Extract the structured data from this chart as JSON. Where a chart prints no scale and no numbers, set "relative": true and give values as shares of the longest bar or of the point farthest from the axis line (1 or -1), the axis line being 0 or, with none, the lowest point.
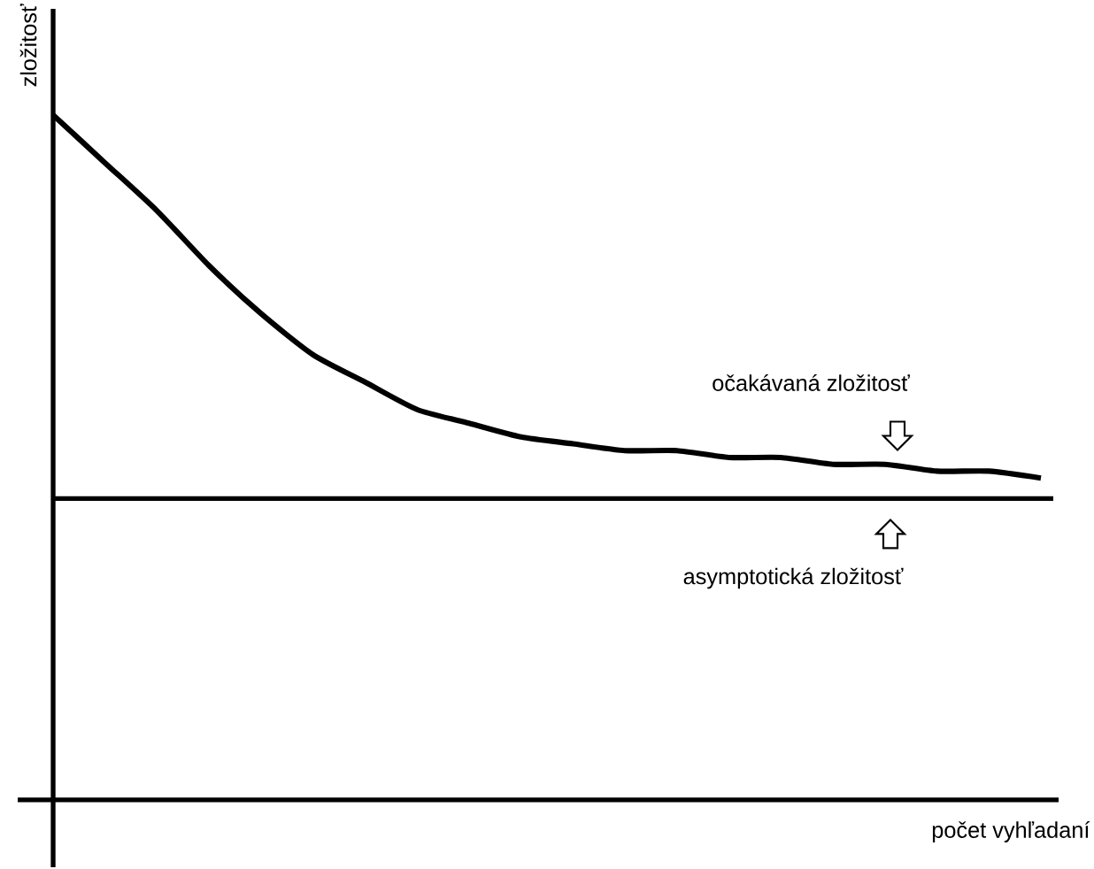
{
  "chart_data": {
    "type": "line",
    "relative": true,
    "xlabel": "počet vyhľadaní",
    "ylabel": "zložitosť",
    "categories": [
      null,
      null,
      null,
      null,
      null,
      null,
      null,
      null,
      null,
      null,
      null,
      null,
      null,
      null,
      null,
      null,
      null,
      null,
      null,
      null
    ],
    "series": [
      {
        "color": "#000000",
        "values": [
          1,
          0.93,
          0.86,
          0.78,
          0.71,
          0.65,
          0.61,
          0.57,
          0.55,
          0.53,
          0.52,
          0.51,
          0.51,
          0.5,
          0.5,
          0.49,
          0.49,
          0.48,
          0.48,
          0.47
        ]
      }
    ],
    "ref_lines": [
      {
        "axis": "y",
        "value": 0.44,
        "label": "asymptotická zložitosť",
        "color": "#000000"
      }
    ],
    "annotations": [
      "očakávaná zložitosť"
    ]
  }
}
